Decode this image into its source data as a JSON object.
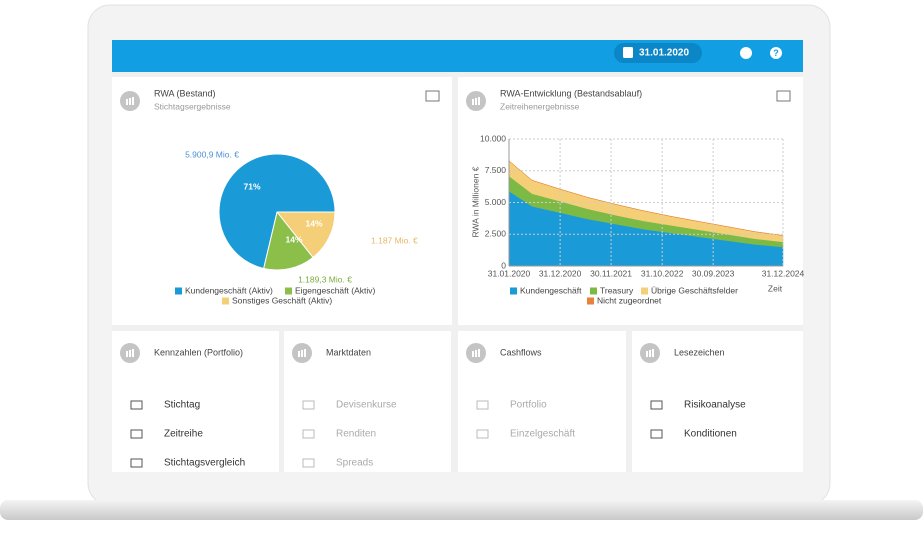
{
  "header": {
    "date": "31.01.2020"
  },
  "chart_data": [
    {
      "type": "pie",
      "title": "RWA (Bestand)",
      "subtitle": "Stichtagsergebnisse",
      "categories": [
        "Kundengeschäft (Aktiv)",
        "Eigengeschäft (Aktiv)",
        "Sonstiges Geschäft (Aktiv)"
      ],
      "values": [
        5900.9,
        1189.3,
        1187
      ],
      "value_labels": [
        "5.900,9 Mio. €",
        "1.189,3 Mio. €",
        "1.187 Mio. €"
      ],
      "percent_labels": [
        "71%",
        "14%",
        "14%"
      ],
      "colors": [
        "#1a9ad6",
        "#8bbf4a",
        "#f5cf78"
      ],
      "label_colors": [
        "#4a8fd8",
        "#7aab3c",
        "#e8b766"
      ]
    },
    {
      "type": "area",
      "title": "RWA-Entwicklung (Bestandsablauf)",
      "subtitle": "Zeitreihenergebnisse",
      "x": [
        "2020-01-31",
        "2020-06-30",
        "2020-12-31",
        "2021-06-30",
        "2021-12-31",
        "2022-06-30",
        "2022-12-31",
        "2023-06-30",
        "2023-12-31",
        "2024-06-30",
        "2024-12-31"
      ],
      "series": [
        {
          "name": "Kundengeschäft",
          "color": "#1a9ad6",
          "values": [
            5900,
            4700,
            4200,
            3700,
            3300,
            2900,
            2600,
            2300,
            2000,
            1700,
            1500
          ]
        },
        {
          "name": "Treasury",
          "color": "#7dba45",
          "values": [
            1190,
            1000,
            900,
            800,
            700,
            650,
            600,
            550,
            500,
            450,
            400
          ]
        },
        {
          "name": "Übrige Geschäftsfelder",
          "color": "#f5cf78",
          "values": [
            1190,
            1050,
            950,
            900,
            850,
            800,
            700,
            650,
            600,
            550,
            500
          ]
        },
        {
          "name": "Nicht zugeordnet",
          "color": "#e8823a",
          "values": [
            0,
            0,
            0,
            0,
            0,
            0,
            0,
            0,
            0,
            0,
            0
          ]
        }
      ],
      "stacked": true,
      "xlim": [
        "2020-01-31",
        "2024-12-31"
      ],
      "xticks": [
        {
          "value": "2020-01-31",
          "label": "31.01.2020"
        },
        {
          "value": "2020-12-31",
          "label": "31.12.2020"
        },
        {
          "value": "2021-11-30",
          "label": "30.11.2021"
        },
        {
          "value": "2022-10-31",
          "label": "31.10.2022"
        },
        {
          "value": "2023-09-30",
          "label": "30.09.2023"
        },
        {
          "value": "2024-12-31",
          "label": "31.12.2024"
        }
      ],
      "ylim": [
        0,
        10000
      ],
      "yticks": [
        0,
        {
          "value": 2500,
          "label": "2.500"
        },
        {
          "value": 5000,
          "label": "5.000"
        },
        {
          "value": 7500,
          "label": "7.500"
        },
        {
          "value": 10000,
          "label": "10.000"
        }
      ],
      "ylabel": "RWA in Millionen €",
      "xlabel": "Zeit",
      "grid": true
    }
  ],
  "tiles": [
    {
      "title": "Kennzahlen (Portfolio)",
      "disabled": false,
      "items": [
        "Stichtag",
        "Zeitreihe",
        "Stichtagsvergleich"
      ]
    },
    {
      "title": "Marktdaten",
      "disabled": true,
      "items": [
        "Devisenkurse",
        "Renditen",
        "Spreads"
      ]
    },
    {
      "title": "Cashflows",
      "disabled": true,
      "items": [
        "Portfolio",
        "Einzelgeschäft"
      ]
    },
    {
      "title": "Lesezeichen",
      "disabled": false,
      "items": [
        "Risikoanalyse",
        "Konditionen"
      ]
    }
  ]
}
